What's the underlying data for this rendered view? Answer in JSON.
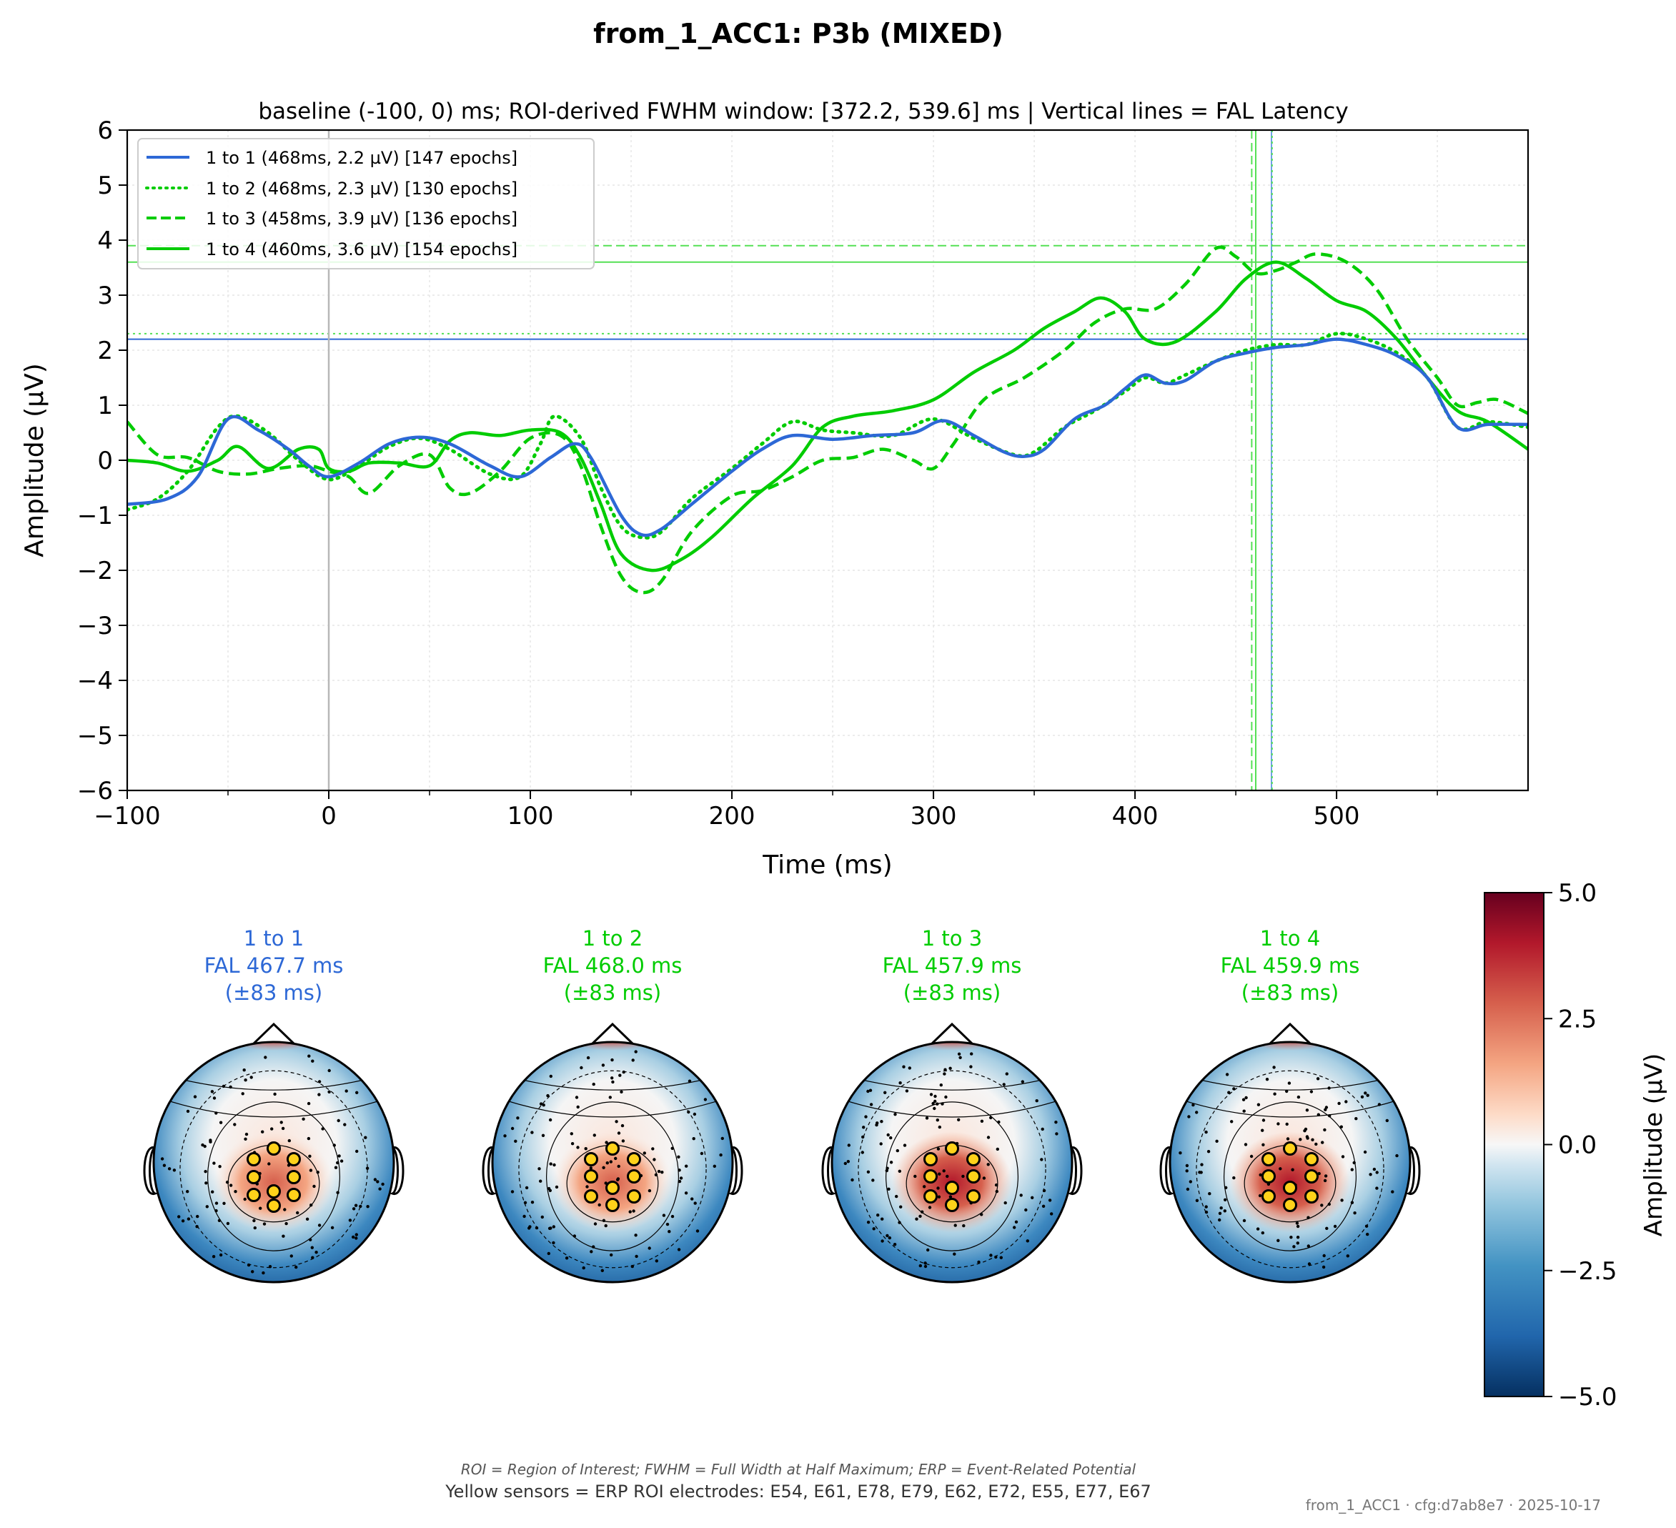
{
  "figure": {
    "title": "from_1_ACC1: P3b (MIXED)",
    "subtitle": "baseline (-100, 0) ms; ROI-derived FWHM window: [372.2, 539.6] ms | Vertical lines = FAL Latency",
    "footnote_italic": "ROI = Region of Interest; FWHM = Full Width at Half Maximum; ERP = Event-Related Potential",
    "footnote": "Yellow sensors = ERP ROI electrodes: E54, E61, E78, E79, E62, E72, E55, E77, E67",
    "stamp": "from_1_ACC1 · cfg:d7ab8e7 · 2025-10-17"
  },
  "colors": {
    "blue": "#2d68d6",
    "green": "#00cc00",
    "light_green": "#55e055",
    "light_blue": "#6fa0e8",
    "gray": "#b8b8b8"
  },
  "chart_data": [
    {
      "type": "line",
      "xlabel": "Time (ms)",
      "ylabel": "Amplitude (µV)",
      "xlim": [
        -100,
        595
      ],
      "ylim": [
        -6,
        6
      ],
      "xticks": [
        -100,
        0,
        100,
        200,
        300,
        400,
        500
      ],
      "xtick_labels": [
        "−100",
        "0",
        "100",
        "200",
        "300",
        "400",
        "500"
      ],
      "yticks": [
        -6,
        -5,
        -4,
        -3,
        -2,
        -1,
        0,
        1,
        2,
        3,
        4,
        5,
        6
      ],
      "ytick_labels": [
        "−6",
        "−5",
        "−4",
        "−3",
        "−2",
        "−1",
        "0",
        "1",
        "2",
        "3",
        "4",
        "5",
        "6"
      ],
      "grid": true,
      "legend_position": "top-left",
      "series": [
        {
          "name": "1 to 1 (468ms, 2.2 µV) [147 epochs]",
          "color": "#2d68d6",
          "dash": "solid",
          "latency": 467.7,
          "peak": 2.2,
          "x": [
            -100,
            -80,
            -65,
            -50,
            -35,
            -20,
            -10,
            0,
            15,
            30,
            45,
            60,
            80,
            95,
            110,
            122,
            130,
            145,
            155,
            165,
            180,
            200,
            215,
            230,
            250,
            270,
            290,
            305,
            320,
            335,
            345,
            355,
            370,
            385,
            395,
            405,
            415,
            425,
            440,
            455,
            470,
            485,
            500,
            515,
            530,
            545,
            560,
            575,
            595
          ],
          "y": [
            -0.8,
            -0.7,
            -0.3,
            0.75,
            0.55,
            0.2,
            -0.1,
            -0.3,
            -0.05,
            0.3,
            0.42,
            0.3,
            -0.1,
            -0.3,
            0.05,
            0.3,
            0.05,
            -1.0,
            -1.35,
            -1.25,
            -0.8,
            -0.2,
            0.2,
            0.45,
            0.38,
            0.45,
            0.5,
            0.72,
            0.45,
            0.15,
            0.07,
            0.2,
            0.75,
            1.0,
            1.3,
            1.55,
            1.4,
            1.45,
            1.8,
            1.95,
            2.05,
            2.1,
            2.2,
            2.1,
            1.9,
            1.5,
            0.6,
            0.65,
            0.65
          ]
        },
        {
          "name": "1 to 2 (468ms, 2.3 µV) [130 epochs]",
          "color": "#00cc00",
          "dash": "dotted",
          "latency": 468.0,
          "peak": 2.3,
          "x": [
            -100,
            -85,
            -70,
            -55,
            -45,
            -30,
            -15,
            0,
            15,
            30,
            45,
            60,
            80,
            95,
            105,
            112,
            125,
            135,
            145,
            155,
            165,
            180,
            200,
            215,
            230,
            245,
            260,
            280,
            300,
            320,
            340,
            350,
            365,
            380,
            395,
            405,
            415,
            425,
            440,
            455,
            470,
            485,
            500,
            515,
            530,
            545,
            560,
            575,
            595
          ],
          "y": [
            -0.9,
            -0.7,
            -0.2,
            0.6,
            0.8,
            0.5,
            0.0,
            -0.35,
            -0.1,
            0.25,
            0.4,
            0.2,
            -0.25,
            -0.3,
            0.3,
            0.8,
            0.4,
            -0.5,
            -1.2,
            -1.4,
            -1.3,
            -0.7,
            -0.15,
            0.3,
            0.7,
            0.55,
            0.5,
            0.45,
            0.75,
            0.4,
            0.1,
            0.15,
            0.6,
            0.9,
            1.25,
            1.5,
            1.4,
            1.55,
            1.8,
            2.0,
            2.1,
            2.1,
            2.3,
            2.2,
            1.95,
            1.5,
            0.6,
            0.7,
            0.6
          ]
        },
        {
          "name": "1 to 3 (458ms, 3.9 µV) [136 epochs]",
          "color": "#00cc00",
          "dash": "dashed",
          "latency": 457.9,
          "peak": 3.9,
          "x": [
            -100,
            -85,
            -70,
            -55,
            -40,
            -25,
            -10,
            0,
            10,
            20,
            35,
            50,
            60,
            70,
            85,
            100,
            115,
            125,
            135,
            145,
            155,
            165,
            180,
            200,
            215,
            230,
            245,
            260,
            275,
            290,
            300,
            310,
            325,
            345,
            365,
            380,
            395,
            410,
            425,
            440,
            450,
            460,
            470,
            480,
            490,
            505,
            520,
            535,
            550,
            560,
            570,
            580,
            595
          ],
          "y": [
            0.7,
            0.1,
            0.05,
            -0.2,
            -0.25,
            -0.15,
            -0.1,
            -0.2,
            -0.3,
            -0.6,
            -0.1,
            0.1,
            -0.5,
            -0.6,
            -0.2,
            0.4,
            0.45,
            -0.1,
            -1.2,
            -2.1,
            -2.4,
            -2.2,
            -1.3,
            -0.65,
            -0.55,
            -0.3,
            0.0,
            0.05,
            0.2,
            0.0,
            -0.15,
            0.3,
            1.1,
            1.5,
            2.0,
            2.5,
            2.75,
            2.75,
            3.2,
            3.85,
            3.7,
            3.4,
            3.45,
            3.6,
            3.75,
            3.6,
            3.1,
            2.2,
            1.5,
            1.0,
            1.05,
            1.1,
            0.85
          ]
        },
        {
          "name": "1 to 4 (460ms, 3.6 µV) [154 epochs]",
          "color": "#00cc00",
          "dash": "solid",
          "latency": 459.9,
          "peak": 3.6,
          "x": [
            -100,
            -85,
            -70,
            -55,
            -45,
            -30,
            -15,
            -5,
            0,
            10,
            20,
            35,
            50,
            60,
            70,
            85,
            100,
            115,
            125,
            135,
            145,
            160,
            175,
            190,
            210,
            230,
            245,
            260,
            280,
            300,
            320,
            340,
            355,
            370,
            383,
            395,
            405,
            420,
            440,
            455,
            470,
            485,
            500,
            515,
            530,
            545,
            560,
            575,
            595
          ],
          "y": [
            0.0,
            -0.05,
            -0.2,
            0.0,
            0.25,
            -0.15,
            0.2,
            0.2,
            -0.15,
            -0.2,
            -0.05,
            -0.05,
            -0.1,
            0.35,
            0.5,
            0.45,
            0.55,
            0.5,
            0.05,
            -0.8,
            -1.7,
            -2.0,
            -1.8,
            -1.4,
            -0.7,
            -0.1,
            0.6,
            0.8,
            0.9,
            1.1,
            1.6,
            2.0,
            2.4,
            2.7,
            2.95,
            2.7,
            2.2,
            2.15,
            2.7,
            3.3,
            3.6,
            3.3,
            2.9,
            2.7,
            2.2,
            1.5,
            0.9,
            0.7,
            0.2
          ]
        }
      ],
      "reference_lines": [
        {
          "axis": "y",
          "value": 2.2,
          "color": "#2d68d6",
          "dash": "solid"
        },
        {
          "axis": "y",
          "value": 2.3,
          "color": "#55e055",
          "dash": "dotted"
        },
        {
          "axis": "y",
          "value": 3.9,
          "color": "#55e055",
          "dash": "dashed"
        },
        {
          "axis": "y",
          "value": 3.6,
          "color": "#55e055",
          "dash": "solid"
        },
        {
          "axis": "x",
          "value": 0,
          "color": "#b8b8b8",
          "dash": "solid"
        },
        {
          "axis": "x",
          "value": 467.7,
          "color": "#6fa0e8",
          "dash": "solid"
        },
        {
          "axis": "x",
          "value": 468.0,
          "color": "#55e055",
          "dash": "dotted"
        },
        {
          "axis": "x",
          "value": 457.9,
          "color": "#55e055",
          "dash": "dashed"
        },
        {
          "axis": "x",
          "value": 459.9,
          "color": "#55e055",
          "dash": "solid"
        }
      ]
    },
    {
      "type": "heatmap",
      "ylabel": "Amplitude (µV)",
      "colormap": "RdBu_r",
      "clim": [
        -5.0,
        5.0
      ],
      "colorbar_ticks": [
        5.0,
        2.5,
        0.0,
        -2.5,
        -5.0
      ],
      "colorbar_tick_labels": [
        "5.0",
        "2.5",
        "0.0",
        "−2.5",
        "−5.0"
      ],
      "roi_electrodes": [
        "E54",
        "E61",
        "E78",
        "E79",
        "E62",
        "E72",
        "E55",
        "E77",
        "E67"
      ],
      "topomaps": [
        {
          "title": "1 to 1",
          "fal": "FAL 467.7 ms",
          "spread": "(±83 ms)",
          "color": "#2d68d6"
        },
        {
          "title": "1 to 2",
          "fal": "FAL 468.0 ms",
          "spread": "(±83 ms)",
          "color": "#00cc00"
        },
        {
          "title": "1 to 3",
          "fal": "FAL 457.9 ms",
          "spread": "(±83 ms)",
          "color": "#00cc00"
        },
        {
          "title": "1 to 4",
          "fal": "FAL 459.9 ms",
          "spread": "(±83 ms)",
          "color": "#00cc00"
        }
      ]
    }
  ]
}
